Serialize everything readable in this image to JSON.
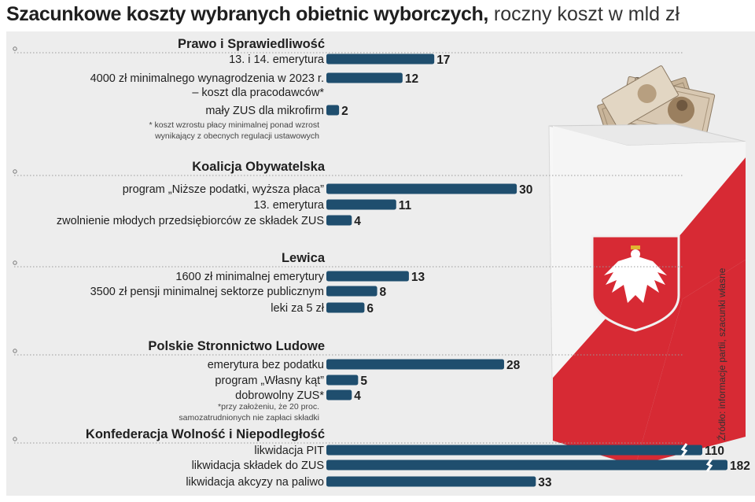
{
  "title": {
    "bold": "Szacunkowe koszty wybranych obietnic wyborczych,",
    "light": "roczny koszt w mld zł"
  },
  "source": "Źródło: informacje partii, szacunki własne",
  "colors": {
    "bar": "#1f4e6e",
    "background": "#ededed",
    "text": "#1f1f1f",
    "ballot_red": "#d72a34"
  },
  "footnotes": {
    "pis": [
      "* koszt wzrostu płacy minimalnej ponad wzrost",
      "wynikający z obecnych regulacji ustawowych"
    ],
    "psl": [
      "*przy założeniu, że 20 proc.",
      "samozatrudnionych nie zapłaci składki"
    ]
  },
  "chart_data": {
    "type": "bar",
    "orientation": "horizontal",
    "unit": "mld zł",
    "broken_axis_values": [
      110,
      182
    ],
    "groups": [
      {
        "party": "Prawo i Sprawiedliwość",
        "items": [
          {
            "label": "13. i 14. emerytura",
            "value": 17
          },
          {
            "label": "4000 zł minimalnego wynagrodzenia w 2023 r.",
            "label2": "– koszt dla pracodawców*",
            "value": 12
          },
          {
            "label": "mały ZUS dla mikrofirm",
            "value": 2
          }
        ]
      },
      {
        "party": "Koalicja Obywatelska",
        "items": [
          {
            "label": "program „Niższe podatki, wyższa płaca”",
            "value": 30
          },
          {
            "label": "13. emerytura",
            "value": 11
          },
          {
            "label": "zwolnienie młodych przedsiębiorców ze składek ZUS",
            "value": 4
          }
        ]
      },
      {
        "party": "Lewica",
        "items": [
          {
            "label": "1600 zł minimalnej emerytury",
            "value": 13
          },
          {
            "label": "3500 zł pensji minimalnej sektorze publicznym",
            "value": 8
          },
          {
            "label": "leki za 5 zł",
            "value": 6
          }
        ]
      },
      {
        "party": "Polskie Stronnictwo Ludowe",
        "items": [
          {
            "label": "emerytura bez podatku",
            "value": 28
          },
          {
            "label": "program „Własny kąt”",
            "value": 5
          },
          {
            "label": "dobrowolny ZUS*",
            "value": 4
          }
        ]
      },
      {
        "party": "Konfederacja Wolność i Niepodległość",
        "items": [
          {
            "label": "likwidacja PIT",
            "value": 110
          },
          {
            "label": "likwidacja składek do ZUS",
            "value": 182
          },
          {
            "label": "likwidacja akcyzy na paliwo",
            "value": 33
          }
        ]
      }
    ]
  }
}
